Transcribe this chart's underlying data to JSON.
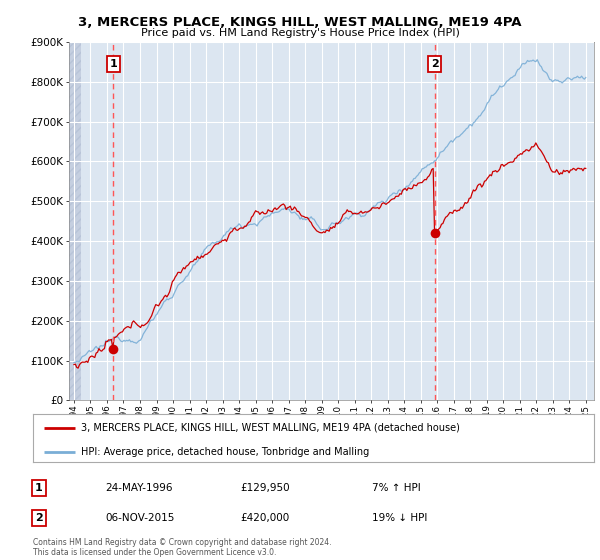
{
  "title": "3, MERCERS PLACE, KINGS HILL, WEST MALLING, ME19 4PA",
  "subtitle": "Price paid vs. HM Land Registry's House Price Index (HPI)",
  "ylim": [
    0,
    900000
  ],
  "yticks": [
    0,
    100000,
    200000,
    300000,
    400000,
    500000,
    600000,
    700000,
    800000,
    900000
  ],
  "ytick_labels": [
    "£0",
    "£100K",
    "£200K",
    "£300K",
    "£400K",
    "£500K",
    "£600K",
    "£700K",
    "£800K",
    "£900K"
  ],
  "background_color": "#ffffff",
  "plot_bg_color": "#dce6f1",
  "grid_color": "#ffffff",
  "legend_label_red": "3, MERCERS PLACE, KINGS HILL, WEST MALLING, ME19 4PA (detached house)",
  "legend_label_blue": "HPI: Average price, detached house, Tonbridge and Malling",
  "annotation1_date": "24-MAY-1996",
  "annotation1_price": "£129,950",
  "annotation1_hpi": "7% ↑ HPI",
  "annotation2_date": "06-NOV-2015",
  "annotation2_price": "£420,000",
  "annotation2_hpi": "19% ↓ HPI",
  "footer": "Contains HM Land Registry data © Crown copyright and database right 2024.\nThis data is licensed under the Open Government Licence v3.0.",
  "sale1_year": 1996.39,
  "sale1_price": 129950,
  "sale2_year": 2015.84,
  "sale2_price": 420000,
  "vline_color": "#ff5555",
  "dot_color": "#cc0000",
  "red_line_color": "#cc0000",
  "blue_line_color": "#7aaed6"
}
